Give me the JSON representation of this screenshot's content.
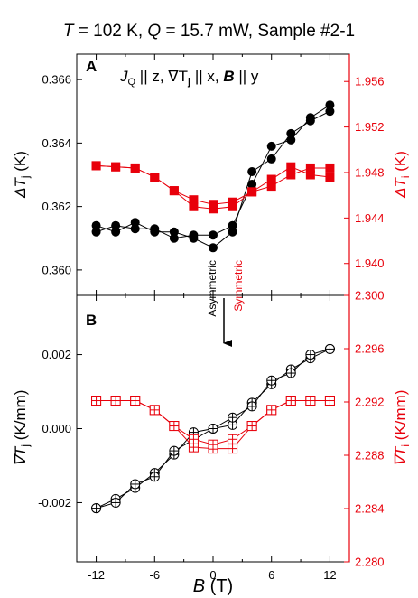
{
  "header": {
    "T_sym": "T",
    "T_val": " = 102 K, ",
    "Q_sym": "Q",
    "Q_val": " = 15.7 mW, Sample #2-1"
  },
  "colors": {
    "black": "#000000",
    "red": "#e8000b"
  },
  "annotations": {
    "asymmetric": "Asymmetric",
    "symmetric": "Symmetric"
  },
  "xaxis": {
    "label_sym": "B",
    "label_unit": " (T)"
  },
  "chart_data": [
    {
      "type": "scatter",
      "panel_letter": "A",
      "annotation_parts": [
        "J",
        "Q",
        " || z, ∇T",
        "j",
        " || x, ",
        "B",
        " || y"
      ],
      "xlim": [
        -14,
        14
      ],
      "xticks": [
        -12,
        -6,
        0,
        6,
        12
      ],
      "xtick_labels": [
        "-12",
        "-6",
        "0",
        "6",
        "12"
      ],
      "left_axis": {
        "label_sym": "ΔT",
        "label_sub": "j",
        "label_unit": " (K)",
        "ylim": [
          0.3592,
          0.3668
        ],
        "ticks": [
          0.36,
          0.362,
          0.364,
          0.366
        ],
        "tick_labels": [
          "0.360",
          "0.362",
          "0.364",
          "0.366"
        ]
      },
      "right_axis": {
        "label_sym": "ΔT",
        "label_sub": "i",
        "label_unit": " (K)",
        "ylim": [
          1.9372,
          1.9584
        ],
        "ticks": [
          1.94,
          1.944,
          1.948,
          1.952,
          1.956
        ],
        "tick_labels": [
          "1.940",
          "1.944",
          "1.948",
          "1.952",
          "1.956"
        ]
      },
      "series": [
        {
          "marker": "filled-circle",
          "axis": "left",
          "color": "#000000",
          "x": [
            -12,
            -10,
            -8,
            -6,
            -4,
            -2,
            0,
            2,
            4,
            6,
            8,
            10,
            12
          ],
          "sweeps": [
            [
              0.3614,
              0.3612,
              0.3615,
              0.3612,
              0.3612,
              0.361,
              0.3607,
              0.3612,
              0.3631,
              0.3635,
              0.3643,
              0.3647,
              0.365
            ],
            [
              0.3612,
              0.3614,
              0.3613,
              0.3613,
              0.361,
              0.3611,
              0.3611,
              0.3614,
              0.3627,
              0.3639,
              0.3641,
              0.3648,
              0.3652
            ]
          ]
        },
        {
          "marker": "filled-square",
          "axis": "right",
          "color": "#e8000b",
          "x": [
            -12,
            -10,
            -8,
            -6,
            -4,
            -2,
            0,
            2,
            4,
            6,
            8,
            10,
            12
          ],
          "sweeps": [
            [
              1.9486,
              1.9485,
              1.9484,
              1.9476,
              1.9464,
              1.9456,
              1.9452,
              1.9454,
              1.9463,
              1.9468,
              1.9478,
              1.9484,
              1.9484
            ],
            [
              1.9486,
              1.9485,
              1.9484,
              1.9476,
              1.9464,
              1.945,
              1.9448,
              1.945,
              1.9463,
              1.9474,
              1.9485,
              1.9478,
              1.9476
            ]
          ]
        }
      ]
    },
    {
      "type": "scatter",
      "panel_letter": "B",
      "xlim": [
        -14,
        14
      ],
      "xticks": [
        -12,
        -6,
        0,
        6,
        12
      ],
      "xtick_labels": [
        "-12",
        "-6",
        "0",
        "6",
        "12"
      ],
      "left_axis": {
        "label_sym": "∇T",
        "label_sub": "j",
        "label_unit": " (K/mm)",
        "ylim": [
          -0.0036,
          0.0036
        ],
        "ticks": [
          -0.002,
          0.0,
          0.002
        ],
        "tick_labels": [
          "-0.002",
          "0.000",
          "0.002"
        ]
      },
      "right_axis": {
        "label_sym": "∇T",
        "label_sub": "i",
        "label_unit": " (K/mm)",
        "ylim": [
          2.28,
          2.3
        ],
        "ticks": [
          2.28,
          2.284,
          2.288,
          2.292,
          2.296,
          2.3
        ],
        "tick_labels": [
          "2.280",
          "2.284",
          "2.288",
          "2.292",
          "2.296",
          "2.300"
        ]
      },
      "series": [
        {
          "marker": "crossed-circle",
          "axis": "left",
          "color": "#000000",
          "x": [
            -12,
            -10,
            -8,
            -6,
            -4,
            -2,
            0,
            2,
            4,
            6,
            8,
            10,
            12
          ],
          "sweeps": [
            [
              -0.00215,
              -0.0019,
              -0.0016,
              -0.0012,
              -0.0007,
              -0.0001,
              0.0,
              0.0001,
              0.0007,
              0.0012,
              0.0016,
              0.0019,
              0.00215
            ],
            [
              -0.00215,
              -0.002,
              -0.0015,
              -0.0013,
              -0.0006,
              -0.0003,
              0.0,
              0.0003,
              0.0006,
              0.0013,
              0.0015,
              0.002,
              0.00215
            ]
          ]
        },
        {
          "marker": "crossed-square",
          "axis": "right",
          "color": "#e8000b",
          "x": [
            -12,
            -10,
            -8,
            -6,
            -4,
            -2,
            0,
            2,
            4,
            6,
            8,
            10,
            12
          ],
          "sweeps": [
            [
              2.2921,
              2.2921,
              2.2921,
              2.2914,
              2.2902,
              2.2886,
              2.2885,
              2.2885,
              2.2902,
              2.2914,
              2.2921,
              2.2921,
              2.2921
            ],
            [
              2.2921,
              2.2921,
              2.2921,
              2.2914,
              2.2902,
              2.2892,
              2.2888,
              2.2892,
              2.2902,
              2.2914,
              2.2921,
              2.2921,
              2.2921
            ]
          ]
        }
      ]
    }
  ]
}
